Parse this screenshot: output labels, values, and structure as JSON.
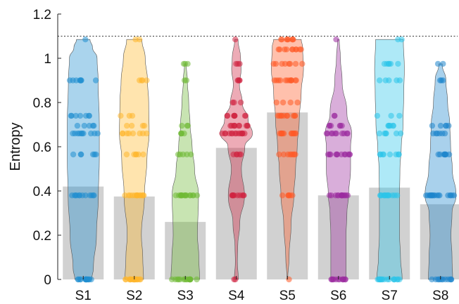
{
  "chart_data": {
    "type": "bar",
    "subtype": "bar with overlaid violin and jittered scatter",
    "title": "",
    "xlabel": "",
    "ylabel": "Entropy",
    "categories": [
      "S1",
      "S2",
      "S3",
      "S4",
      "S5",
      "S6",
      "S7",
      "S8"
    ],
    "ylim": [
      0,
      1.2
    ],
    "yticks": [
      0,
      0.2,
      0.4,
      0.6,
      0.8,
      1,
      1.2
    ],
    "ytick_labels": [
      "0",
      "0.2",
      "0.4",
      "0.6",
      "0.8",
      "1",
      "1.2"
    ],
    "reference_line": {
      "y": 1.1,
      "style": "dotted"
    },
    "bar_values": [
      0.42,
      0.375,
      0.26,
      0.595,
      0.755,
      0.38,
      0.415,
      0.34
    ],
    "bar_color": "#c9c9c9",
    "series_colors": [
      "#1f8ed0",
      "#ffb72b",
      "#6fb935",
      "#d0223f",
      "#ff5a26",
      "#9b2a9e",
      "#2bc4ea",
      "#1d85cc"
    ],
    "violin_max": [
      1.085,
      1.085,
      0.975,
      1.085,
      1.085,
      1.085,
      1.085,
      0.975
    ],
    "violin_shapes": [
      [
        [
          0,
          0.5
        ],
        [
          0.05,
          0.6
        ],
        [
          0.2,
          0.78
        ],
        [
          0.38,
          0.9
        ],
        [
          0.55,
          0.95
        ],
        [
          0.7,
          0.95
        ],
        [
          0.9,
          0.88
        ],
        [
          1.0,
          0.82
        ],
        [
          1.05,
          0.55
        ],
        [
          1.085,
          0.4
        ]
      ],
      [
        [
          0,
          0.55
        ],
        [
          0.1,
          0.5
        ],
        [
          0.2,
          0.42
        ],
        [
          0.38,
          0.6
        ],
        [
          0.55,
          0.75
        ],
        [
          0.66,
          0.88
        ],
        [
          0.8,
          0.85
        ],
        [
          0.9,
          0.78
        ],
        [
          1.0,
          0.65
        ],
        [
          1.085,
          0.45
        ]
      ],
      [
        [
          0,
          0.85
        ],
        [
          0.1,
          0.8
        ],
        [
          0.2,
          0.72
        ],
        [
          0.38,
          0.78
        ],
        [
          0.5,
          0.55
        ],
        [
          0.6,
          0.4
        ],
        [
          0.7,
          0.28
        ],
        [
          0.8,
          0.2
        ],
        [
          0.9,
          0.12
        ],
        [
          0.975,
          0.05
        ]
      ],
      [
        [
          0,
          0.12
        ],
        [
          0.08,
          0.06
        ],
        [
          0.15,
          0.08
        ],
        [
          0.25,
          0.2
        ],
        [
          0.38,
          0.48
        ],
        [
          0.5,
          0.3
        ],
        [
          0.6,
          0.5
        ],
        [
          0.66,
          0.95
        ],
        [
          0.72,
          0.7
        ],
        [
          0.8,
          0.35
        ],
        [
          0.88,
          0.18
        ],
        [
          0.95,
          0.28
        ],
        [
          1.0,
          0.25
        ],
        [
          1.085,
          0.1
        ]
      ],
      [
        [
          0,
          0.02
        ],
        [
          0.1,
          0.1
        ],
        [
          0.25,
          0.22
        ],
        [
          0.38,
          0.38
        ],
        [
          0.5,
          0.48
        ],
        [
          0.6,
          0.58
        ],
        [
          0.72,
          0.7
        ],
        [
          0.85,
          0.82
        ],
        [
          0.95,
          0.95
        ],
        [
          1.05,
          0.9
        ],
        [
          1.085,
          0.82
        ]
      ],
      [
        [
          0,
          0.45
        ],
        [
          0.1,
          0.45
        ],
        [
          0.2,
          0.45
        ],
        [
          0.3,
          0.5
        ],
        [
          0.38,
          0.6
        ],
        [
          0.5,
          0.72
        ],
        [
          0.6,
          0.72
        ],
        [
          0.66,
          0.78
        ],
        [
          0.75,
          0.5
        ],
        [
          0.9,
          0.22
        ],
        [
          1.0,
          0.12
        ],
        [
          1.085,
          0.05
        ]
      ],
      [
        [
          0,
          0.75
        ],
        [
          0.1,
          0.65
        ],
        [
          0.2,
          0.6
        ],
        [
          0.38,
          0.6
        ],
        [
          0.5,
          0.62
        ],
        [
          0.6,
          0.7
        ],
        [
          0.7,
          0.8
        ],
        [
          0.85,
          0.85
        ],
        [
          0.95,
          0.88
        ],
        [
          1.085,
          0.82
        ]
      ],
      [
        [
          0,
          0.72
        ],
        [
          0.1,
          0.68
        ],
        [
          0.2,
          0.62
        ],
        [
          0.3,
          0.68
        ],
        [
          0.38,
          0.92
        ],
        [
          0.5,
          0.7
        ],
        [
          0.6,
          0.6
        ],
        [
          0.7,
          0.55
        ],
        [
          0.8,
          0.42
        ],
        [
          0.9,
          0.32
        ],
        [
          0.975,
          0.1
        ]
      ]
    ],
    "points": [
      [
        [
          0,
          14
        ],
        [
          0.38,
          12
        ],
        [
          0.565,
          6
        ],
        [
          0.66,
          10
        ],
        [
          0.695,
          5
        ],
        [
          0.74,
          7
        ],
        [
          0.9,
          8
        ],
        [
          1.085,
          1
        ]
      ],
      [
        [
          0,
          18
        ],
        [
          0.38,
          14
        ],
        [
          0.565,
          6
        ],
        [
          0.66,
          8
        ],
        [
          0.695,
          4
        ],
        [
          0.74,
          3
        ],
        [
          0.9,
          4
        ],
        [
          1.085,
          2
        ]
      ],
      [
        [
          0,
          16
        ],
        [
          0.38,
          16
        ],
        [
          0.565,
          5
        ],
        [
          0.66,
          4
        ],
        [
          0.695,
          3
        ],
        [
          0.9,
          2
        ],
        [
          0.975,
          3
        ]
      ],
      [
        [
          0,
          2
        ],
        [
          0.38,
          10
        ],
        [
          0.565,
          5
        ],
        [
          0.66,
          14
        ],
        [
          0.695,
          10
        ],
        [
          0.74,
          8
        ],
        [
          0.8,
          3
        ],
        [
          0.9,
          4
        ],
        [
          0.975,
          3
        ],
        [
          1.085,
          1
        ]
      ],
      [
        [
          0,
          1
        ],
        [
          0.38,
          6
        ],
        [
          0.565,
          8
        ],
        [
          0.66,
          12
        ],
        [
          0.74,
          10
        ],
        [
          0.8,
          4
        ],
        [
          0.9,
          12
        ],
        [
          0.975,
          8
        ],
        [
          1.04,
          10
        ],
        [
          1.085,
          8
        ]
      ],
      [
        [
          0,
          12
        ],
        [
          0.38,
          14
        ],
        [
          0.565,
          12
        ],
        [
          0.66,
          10
        ],
        [
          0.695,
          6
        ],
        [
          0.74,
          2
        ],
        [
          1.085,
          1
        ]
      ],
      [
        [
          0,
          16
        ],
        [
          0.38,
          14
        ],
        [
          0.565,
          8
        ],
        [
          0.66,
          6
        ],
        [
          0.695,
          6
        ],
        [
          0.74,
          3
        ],
        [
          0.9,
          5
        ],
        [
          0.975,
          6
        ],
        [
          1.085,
          2
        ]
      ],
      [
        [
          0,
          12
        ],
        [
          0.38,
          18
        ],
        [
          0.565,
          8
        ],
        [
          0.66,
          6
        ],
        [
          0.695,
          5
        ],
        [
          0.9,
          3
        ],
        [
          0.975,
          2
        ]
      ]
    ]
  }
}
